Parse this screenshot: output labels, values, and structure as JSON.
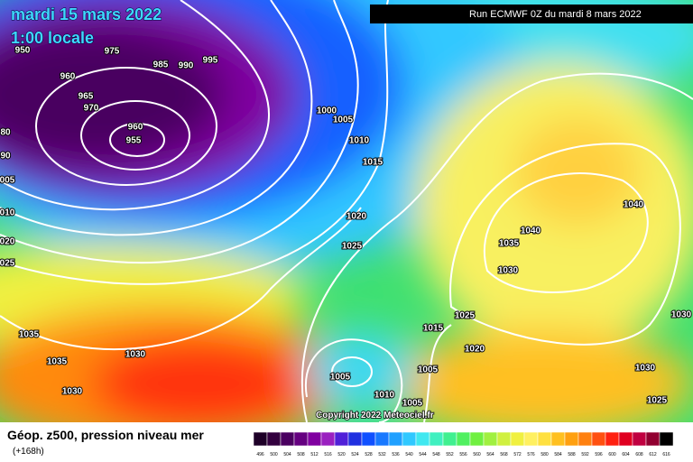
{
  "header": {
    "date": "mardi 15 mars 2022",
    "time": "1:00 locale",
    "run": "Run ECMWF 0Z du mardi 8 mars 2022"
  },
  "map": {
    "copyright": "Copyright 2022 Meteociel.fr",
    "isobar_labels": [
      "950",
      "975",
      "985",
      "990",
      "995",
      "960",
      "965",
      "970",
      "960",
      "955",
      "1000",
      "1005",
      "1010",
      "1015",
      "1020",
      "1025",
      "1035",
      "1040",
      "1040",
      "1030",
      "1025",
      "1015",
      "1020",
      "1005",
      "1005",
      "1010",
      "1005",
      "1030",
      "1025",
      "1030",
      "1035",
      "1035",
      "1030",
      "1030",
      "80",
      "90",
      "005",
      "010",
      "020",
      "025"
    ]
  },
  "legend": {
    "title": "Géop. z500, pression niveau mer",
    "subtitle": "(+168h)",
    "levels": [
      496,
      500,
      504,
      508,
      512,
      516,
      520,
      524,
      528,
      532,
      536,
      540,
      544,
      548,
      552,
      556,
      560,
      564,
      568,
      572,
      576,
      580,
      584,
      588,
      592,
      596,
      600,
      604,
      608,
      612,
      616
    ],
    "colors": [
      "#1e0028",
      "#33003f",
      "#4a0060",
      "#650080",
      "#8000a0",
      "#9a20c0",
      "#5020d8",
      "#2030e0",
      "#1050ff",
      "#1878ff",
      "#20a0ff",
      "#30c8ff",
      "#40e8f0",
      "#40f0c0",
      "#40f090",
      "#50f060",
      "#70f040",
      "#a0f040",
      "#d0f040",
      "#f0f040",
      "#fff060",
      "#ffe040",
      "#ffc020",
      "#ffa010",
      "#ff8010",
      "#ff5010",
      "#ff2010",
      "#e00020",
      "#c00040",
      "#900030",
      "#000000"
    ]
  }
}
